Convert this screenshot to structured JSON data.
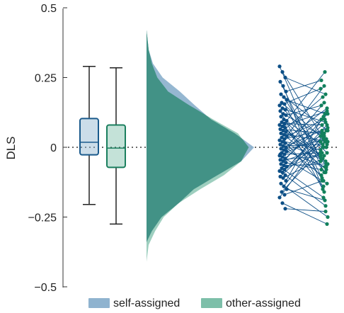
{
  "chart_data": {
    "type": "raincloud",
    "title": "",
    "xlabel": "",
    "ylabel": "DLS",
    "ylim": [
      -0.5,
      0.5
    ],
    "yticks": [
      -0.5,
      -0.25,
      0,
      0.25,
      0.5
    ],
    "ytick_labels": [
      "−0.5",
      "−0.25",
      "0",
      "0.25",
      "0.5"
    ],
    "zero_line": true,
    "grid": false,
    "legend_position": "bottom",
    "colors": {
      "self_edge": "#1a5a8c",
      "self_fill": "#8fb3cf",
      "other_edge": "#1a7f5e",
      "other_fill": "#7dbfa9",
      "overlap_fill": "#3e8f84",
      "self_points": "#0d4f86",
      "other_points": "#12805c"
    },
    "series": [
      {
        "name": "self-assigned",
        "box": {
          "whisker_low": -0.205,
          "q1": -0.027,
          "median": 0.018,
          "q3": 0.103,
          "whisker_high": 0.29
        },
        "density": {
          "y": [
            -0.34,
            -0.3,
            -0.25,
            -0.2,
            -0.15,
            -0.1,
            -0.05,
            0.0,
            0.05,
            0.1,
            0.15,
            0.2,
            0.25,
            0.3,
            0.35,
            0.42
          ],
          "val": [
            0.0,
            0.05,
            0.14,
            0.3,
            0.44,
            0.66,
            0.88,
            1.0,
            0.82,
            0.6,
            0.45,
            0.31,
            0.15,
            0.06,
            0.02,
            0.0
          ]
        }
      },
      {
        "name": "other-assigned",
        "box": {
          "whisker_low": -0.275,
          "q1": -0.072,
          "median": -0.003,
          "q3": 0.08,
          "whisker_high": 0.285
        },
        "density": {
          "y": [
            -0.41,
            -0.35,
            -0.3,
            -0.25,
            -0.2,
            -0.15,
            -0.1,
            -0.05,
            0.0,
            0.05,
            0.1,
            0.15,
            0.2,
            0.25,
            0.3,
            0.35,
            0.42
          ],
          "val": [
            0.0,
            0.02,
            0.08,
            0.16,
            0.3,
            0.5,
            0.72,
            0.88,
            0.95,
            0.85,
            0.62,
            0.4,
            0.2,
            0.1,
            0.05,
            0.02,
            0.0
          ]
        }
      }
    ],
    "pairs": [
      [
        0.29,
        -0.05
      ],
      [
        0.27,
        0.01
      ],
      [
        0.25,
        0.19
      ],
      [
        0.235,
        -0.09
      ],
      [
        0.22,
        -0.15
      ],
      [
        0.2,
        0.24
      ],
      [
        0.19,
        0.06
      ],
      [
        0.18,
        -0.07
      ],
      [
        0.17,
        0.12
      ],
      [
        0.16,
        0.03
      ],
      [
        0.155,
        -0.11
      ],
      [
        0.15,
        0.21
      ],
      [
        0.14,
        -0.02
      ],
      [
        0.135,
        0.09
      ],
      [
        0.13,
        -0.16
      ],
      [
        0.12,
        0.04
      ],
      [
        0.115,
        0.15
      ],
      [
        0.11,
        -0.06
      ],
      [
        0.1,
        0.0
      ],
      [
        0.095,
        0.27
      ],
      [
        0.09,
        -0.12
      ],
      [
        0.085,
        0.08
      ],
      [
        0.08,
        -0.03
      ],
      [
        0.075,
        0.13
      ],
      [
        0.07,
        -0.09
      ],
      [
        0.065,
        0.05
      ],
      [
        0.06,
        0.18
      ],
      [
        0.055,
        -0.04
      ],
      [
        0.05,
        0.02
      ],
      [
        0.045,
        -0.08
      ],
      [
        0.04,
        0.1
      ],
      [
        0.035,
        -0.14
      ],
      [
        0.03,
        0.06
      ],
      [
        0.025,
        -0.01
      ],
      [
        0.02,
        0.14
      ],
      [
        0.015,
        -0.05
      ],
      [
        0.01,
        0.22
      ],
      [
        0.005,
        0.01
      ],
      [
        0.0,
        -0.1
      ],
      [
        -0.005,
        0.07
      ],
      [
        -0.01,
        0.03
      ],
      [
        -0.015,
        -0.07
      ],
      [
        -0.02,
        0.11
      ],
      [
        -0.025,
        -0.02
      ],
      [
        -0.03,
        0.04
      ],
      [
        -0.035,
        -0.13
      ],
      [
        -0.04,
        0.09
      ],
      [
        -0.045,
        -0.03
      ],
      [
        -0.05,
        0.0
      ],
      [
        -0.055,
        -0.08
      ],
      [
        -0.06,
        0.12
      ],
      [
        -0.065,
        -0.06
      ],
      [
        -0.07,
        0.02
      ],
      [
        -0.075,
        -0.18
      ],
      [
        -0.08,
        0.05
      ],
      [
        -0.085,
        -0.02
      ],
      [
        -0.09,
        0.08
      ],
      [
        -0.1,
        -0.21
      ],
      [
        -0.105,
        0.04
      ],
      [
        -0.11,
        -0.04
      ],
      [
        -0.12,
        0.1
      ],
      [
        -0.13,
        -0.25
      ],
      [
        -0.14,
        0.06
      ],
      [
        -0.15,
        -0.19
      ],
      [
        -0.16,
        0.0
      ],
      [
        -0.17,
        -0.12
      ],
      [
        -0.18,
        0.02
      ],
      [
        -0.2,
        -0.275
      ],
      [
        -0.22,
        -0.23
      ],
      [
        -0.025,
        0.16
      ]
    ]
  },
  "legend": {
    "items": [
      {
        "label": "self-assigned",
        "color": "#8fb3cf"
      },
      {
        "label": "other-assigned",
        "color": "#7dbfa9"
      }
    ]
  }
}
